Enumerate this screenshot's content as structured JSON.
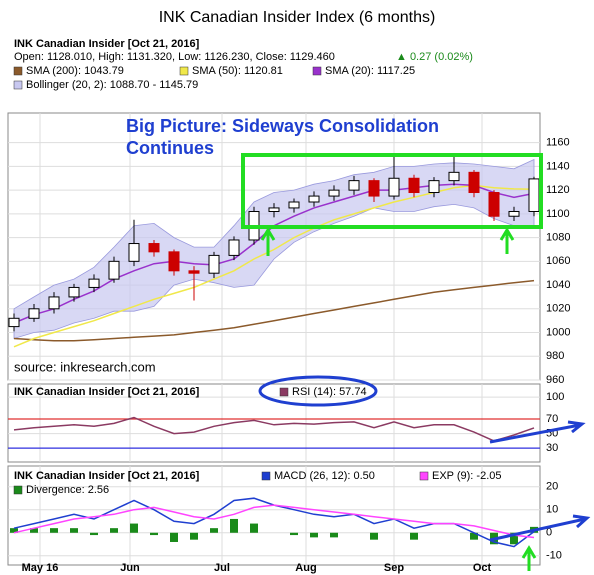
{
  "title": "INK Canadian Insider Index (6 months)",
  "chart_data": [
    {
      "type": "candlestick",
      "heading": "INK Canadian Insider [Oct 21, 2016]",
      "quote": "Open: 1128.010, High: 1131.320, Low: 1126.230, Close: 1129.460",
      "change": "▲ 0.27 (0.02%)",
      "annotations": [
        "Big Picture:  Sideways Consolidation",
        "Continues"
      ],
      "source": "source: inkresearch.com",
      "x": [
        0,
        1,
        2,
        3,
        4,
        5,
        6,
        7,
        8,
        9,
        10,
        11,
        12,
        13,
        14,
        15,
        16,
        17,
        18,
        19,
        20,
        21,
        22,
        23,
        24,
        25,
        26
      ],
      "xlim": [
        -0.3,
        26.3
      ],
      "xticks": [
        {
          "value": 1.3,
          "label": "May 16"
        },
        {
          "value": 5.8,
          "label": "Jun"
        },
        {
          "value": 10.4,
          "label": "Jul"
        },
        {
          "value": 14.6,
          "label": "Aug"
        },
        {
          "value": 19,
          "label": "Sep"
        },
        {
          "value": 23.4,
          "label": "Oct"
        }
      ],
      "open": [
        1005,
        1012,
        1020,
        1030,
        1038,
        1045,
        1060,
        1075,
        1068,
        1052,
        1050,
        1065,
        1078,
        1102,
        1105,
        1110,
        1115,
        1120,
        1128,
        1115,
        1130,
        1118,
        1128,
        1135,
        1118,
        1098,
        1102
      ],
      "high": [
        1016,
        1024,
        1034,
        1041,
        1049,
        1064,
        1095,
        1078,
        1070,
        1056,
        1068,
        1081,
        1106,
        1109,
        1113,
        1119,
        1124,
        1132,
        1130,
        1149,
        1133,
        1131,
        1149,
        1137,
        1120,
        1106,
        1131.32
      ],
      "low": [
        1001,
        1009,
        1016,
        1026,
        1034,
        1042,
        1056,
        1064,
        1048,
        1027,
        1046,
        1061,
        1074,
        1097,
        1101,
        1106,
        1111,
        1116,
        1110,
        1112,
        1114,
        1114,
        1124,
        1114,
        1094,
        1094,
        1098
      ],
      "close": [
        1012,
        1020,
        1030,
        1038,
        1045,
        1060,
        1075,
        1068,
        1052,
        1050,
        1065,
        1078,
        1102,
        1105,
        1110,
        1115,
        1120,
        1128,
        1115,
        1130,
        1118,
        1128,
        1135,
        1118,
        1098,
        1102,
        1129.46
      ],
      "up_color": "#000000",
      "down_color": "#cc0000",
      "band": {
        "name": "Bollinger (20, 2): 1088.70 - 1145.79",
        "color": "#c8c8f0",
        "upper": [
          1020,
          1030,
          1040,
          1045,
          1055,
          1072,
          1090,
          1092,
          1080,
          1072,
          1072,
          1090,
          1110,
          1118,
          1120,
          1125,
          1128,
          1133,
          1135,
          1140,
          1140,
          1142,
          1143,
          1142,
          1140,
          1138,
          1145.79
        ],
        "lower": [
          995,
          1000,
          1002,
          1008,
          1012,
          1018,
          1018,
          1022,
          1040,
          1045,
          1042,
          1038,
          1040,
          1062,
          1076,
          1085,
          1092,
          1098,
          1105,
          1102,
          1102,
          1106,
          1108,
          1105,
          1096,
          1090,
          1088.7
        ]
      },
      "series": [
        {
          "name": "SMA (200): 1043.79",
          "color": "#8b5a2b",
          "values": [
            995,
            994,
            993,
            993,
            994,
            995,
            996,
            997,
            998,
            1000,
            1002,
            1004,
            1007,
            1010,
            1013,
            1016,
            1019,
            1022,
            1025,
            1028,
            1031,
            1034,
            1036,
            1038,
            1040,
            1042,
            1043.79
          ]
        },
        {
          "name": "SMA (50): 1120.81",
          "color": "#f0e84a",
          "values": [
            988,
            995,
            1000,
            1005,
            1010,
            1016,
            1022,
            1028,
            1033,
            1038,
            1045,
            1052,
            1062,
            1070,
            1080,
            1088,
            1095,
            1100,
            1105,
            1110,
            1114,
            1118,
            1122,
            1124,
            1122,
            1121,
            1120.81
          ]
        },
        {
          "name": "SMA (20): 1117.25",
          "color": "#9932cc",
          "values": [
            1008,
            1015,
            1020,
            1028,
            1035,
            1045,
            1052,
            1058,
            1060,
            1058,
            1057,
            1062,
            1075,
            1090,
            1098,
            1105,
            1110,
            1115,
            1120,
            1120,
            1122,
            1124,
            1125,
            1124,
            1118,
            1114,
            1117.25
          ]
        }
      ],
      "ylim": [
        960,
        1185
      ],
      "yticks": [
        960,
        980,
        1000,
        1020,
        1040,
        1060,
        1080,
        1100,
        1120,
        1140,
        1160
      ]
    },
    {
      "type": "line",
      "heading": "INK Canadian Insider [Oct 21, 2016]",
      "series": [
        {
          "name": "RSI (14): 57.74",
          "color": "#8b3a62",
          "values": [
            55,
            58,
            60,
            62,
            60,
            64,
            72,
            60,
            50,
            52,
            60,
            65,
            68,
            62,
            64,
            63,
            65,
            66,
            58,
            66,
            58,
            62,
            62,
            52,
            40,
            48,
            57.74
          ]
        }
      ],
      "reference_lines": [
        {
          "value": 70,
          "color": "#e03030"
        },
        {
          "value": 30,
          "color": "#3030e0"
        }
      ],
      "ylim": [
        11,
        118
      ],
      "yticks": [
        100,
        70,
        50,
        30
      ]
    },
    {
      "type": "macd",
      "heading": "INK Canadian Insider [Oct 21, 2016]",
      "series": [
        {
          "name": "MACD (26, 12): 0.50",
          "color": "#1f3fd0",
          "values": [
            2,
            4,
            6,
            8,
            6,
            10,
            14,
            10,
            5,
            4,
            8,
            14,
            15,
            12,
            10,
            8,
            7,
            8,
            4,
            6,
            2,
            4,
            4,
            0,
            -4,
            -6,
            0.5
          ]
        },
        {
          "name": "EXP (9): -2.05",
          "color": "#ff44ff",
          "values": [
            0,
            2,
            4,
            6,
            7,
            8,
            10,
            11,
            9,
            7,
            6,
            8,
            11,
            12,
            11,
            10,
            9,
            8,
            7,
            6,
            5,
            4,
            4,
            3,
            1,
            -1,
            -2.05
          ]
        }
      ],
      "bars": {
        "name": "Divergence: 2.56",
        "color": "#1a8a1a",
        "values": [
          2,
          2,
          2,
          2,
          -1,
          2,
          4,
          -1,
          -4,
          -3,
          2,
          6,
          4,
          0,
          -1,
          -2,
          -2,
          0,
          -3,
          0,
          -3,
          0,
          0,
          -3,
          -5,
          -5,
          2.56
        ]
      },
      "ylim": [
        -14,
        29
      ],
      "yticks": [
        20,
        10,
        0,
        -10
      ]
    }
  ]
}
